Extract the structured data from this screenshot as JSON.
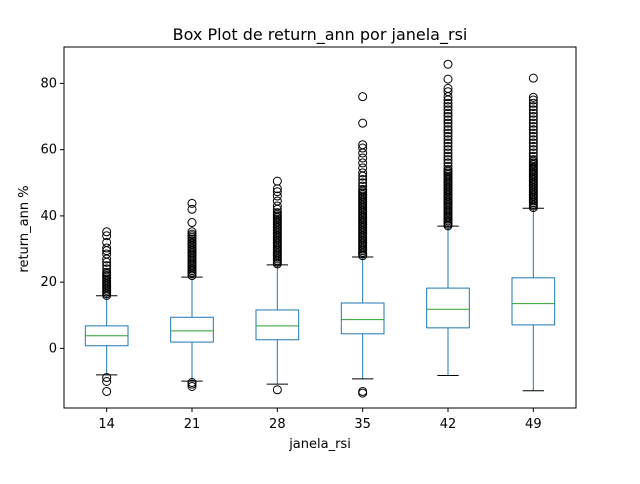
{
  "chart_data": {
    "type": "box",
    "title": "Box Plot de return_ann por janela_rsi",
    "xlabel": "janela_rsi",
    "ylabel": "return_ann %",
    "ylim": [
      -18,
      91
    ],
    "yticks": [
      0,
      20,
      40,
      60,
      80
    ],
    "grid": false,
    "colors": {
      "box": "#1f77b4",
      "median": "#2ca02c",
      "whisker": "#1f77b4",
      "cap": "#000000",
      "flier": "#000000"
    },
    "categories": [
      "14",
      "21",
      "28",
      "35",
      "42",
      "49"
    ],
    "boxes": [
      {
        "label": "14",
        "whislo": -8.0,
        "q1": 0.8,
        "med": 3.8,
        "q3": 6.8,
        "whishi": 15.9,
        "fliers": [
          -8.8,
          -10.0,
          -13.0,
          16.0,
          16.5,
          17.0,
          17.5,
          18.0,
          18.5,
          19.0,
          19.5,
          20.0,
          20.5,
          21.0,
          21.5,
          22.0,
          22.5,
          23.0,
          24.0,
          25.0,
          26.0,
          27.0,
          28.5,
          29.5,
          30.3,
          32.0,
          34.0,
          35.2
        ]
      },
      {
        "label": "21",
        "whislo": -9.9,
        "q1": 1.9,
        "med": 5.3,
        "q3": 9.4,
        "whishi": 21.5,
        "fliers": [
          -10.3,
          -10.8,
          -11.5,
          22.0,
          22.5,
          23.0,
          23.5,
          24.0,
          24.5,
          25.0,
          25.5,
          26.0,
          26.5,
          27.0,
          27.5,
          28.0,
          28.5,
          29.0,
          29.5,
          30.0,
          30.5,
          31.0,
          31.5,
          32.0,
          32.5,
          33.0,
          33.5,
          34.0,
          34.5,
          35.2,
          38.0,
          42.0,
          43.8
        ]
      },
      {
        "label": "28",
        "whislo": -10.8,
        "q1": 2.6,
        "med": 6.8,
        "q3": 11.6,
        "whishi": 25.2,
        "fliers": [
          -12.5,
          25.5,
          26.0,
          26.5,
          27.0,
          27.5,
          28.0,
          28.5,
          29.0,
          29.5,
          30.0,
          30.5,
          31.0,
          31.5,
          32.0,
          32.5,
          33.0,
          33.5,
          34.0,
          34.5,
          35.0,
          35.5,
          36.0,
          36.5,
          37.0,
          37.5,
          38.0,
          38.5,
          39.0,
          39.5,
          40.0,
          40.5,
          41.0,
          42.0,
          43.0,
          44.5,
          46.0,
          47.3,
          48.2,
          50.5
        ]
      },
      {
        "label": "35",
        "whislo": -9.2,
        "q1": 4.4,
        "med": 8.7,
        "q3": 13.7,
        "whishi": 27.6,
        "fliers": [
          -13.0,
          -13.5,
          28.0,
          28.5,
          29.0,
          29.5,
          30.0,
          30.5,
          31.0,
          31.5,
          32.0,
          32.5,
          33.0,
          33.5,
          34.0,
          34.5,
          35.0,
          35.5,
          36.0,
          36.5,
          37.0,
          37.5,
          38.0,
          38.5,
          39.0,
          39.5,
          40.0,
          40.5,
          41.0,
          41.5,
          42.0,
          42.5,
          43.0,
          43.5,
          44.0,
          44.5,
          45.0,
          45.5,
          46.0,
          46.5,
          47.0,
          47.5,
          48.0,
          49.0,
          50.0,
          51.0,
          52.0,
          53.0,
          54.5,
          56.0,
          57.5,
          59.0,
          60.5,
          61.5,
          68.0,
          76.0
        ]
      },
      {
        "label": "42",
        "whislo": -8.2,
        "q1": 6.2,
        "med": 11.8,
        "q3": 18.2,
        "whishi": 36.9,
        "fliers": [
          37.0,
          37.5,
          38.0,
          38.5,
          39.0,
          39.5,
          40.0,
          40.5,
          41.0,
          41.5,
          42.0,
          42.5,
          43.0,
          43.5,
          44.0,
          44.5,
          45.0,
          45.5,
          46.0,
          46.5,
          47.0,
          47.5,
          48.0,
          48.5,
          49.0,
          49.5,
          50.0,
          50.5,
          51.0,
          51.5,
          52.0,
          52.5,
          53.0,
          53.5,
          54.0,
          55.0,
          56.0,
          57.0,
          58.0,
          59.0,
          60.0,
          61.0,
          62.0,
          63.0,
          64.0,
          65.0,
          66.0,
          67.0,
          68.0,
          69.0,
          70.0,
          71.0,
          72.0,
          73.0,
          74.0,
          75.0,
          76.0,
          77.5,
          78.5,
          81.3,
          85.8
        ]
      },
      {
        "label": "49",
        "whislo": -12.8,
        "q1": 7.1,
        "med": 13.5,
        "q3": 21.3,
        "whishi": 42.3,
        "fliers": [
          42.5,
          43.0,
          43.5,
          44.0,
          44.5,
          45.0,
          45.5,
          46.0,
          46.5,
          47.0,
          47.5,
          48.0,
          48.5,
          49.0,
          49.5,
          50.0,
          50.5,
          51.0,
          51.5,
          52.0,
          52.5,
          53.0,
          53.5,
          54.0,
          54.5,
          55.0,
          55.5,
          56.0,
          56.5,
          57.0,
          58.0,
          59.0,
          60.0,
          61.0,
          62.0,
          63.0,
          64.0,
          65.0,
          66.0,
          67.0,
          68.0,
          69.0,
          70.0,
          71.0,
          72.0,
          73.0,
          74.0,
          75.0,
          75.8,
          81.6
        ]
      }
    ]
  }
}
